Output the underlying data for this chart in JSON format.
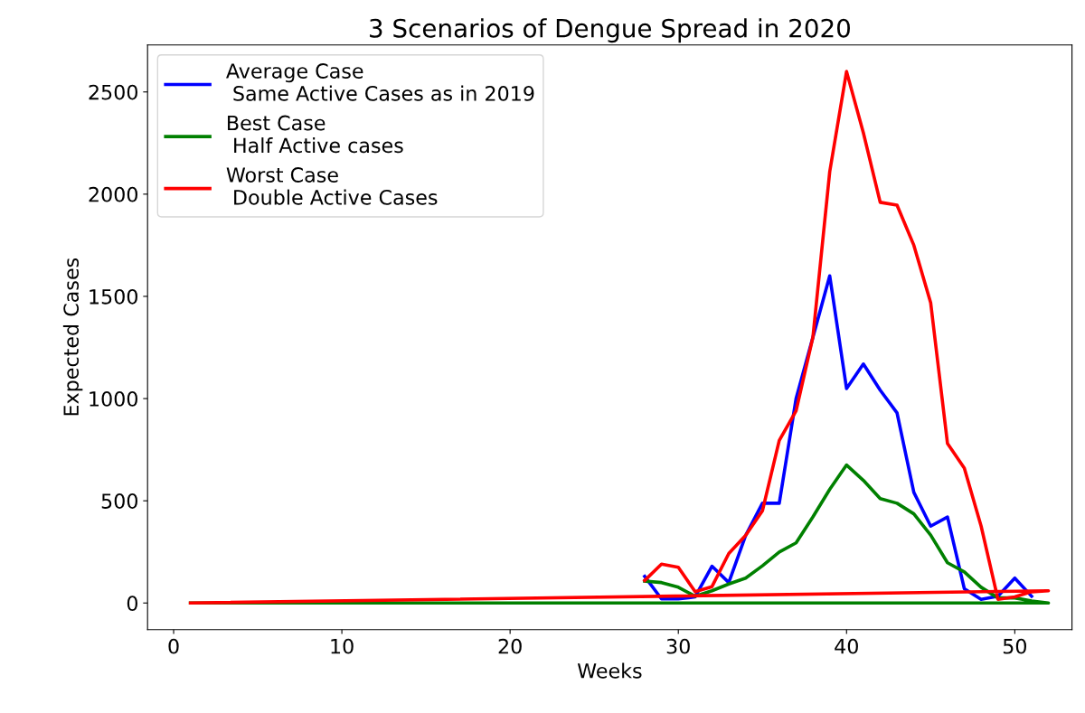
{
  "chart_data": {
    "type": "line",
    "title": "3 Scenarios of Dengue Spread in 2020",
    "xlabel": "Weeks",
    "ylabel": "Expected Cases",
    "xlim": [
      -1.55,
      53.4
    ],
    "xticks": [
      0,
      10,
      20,
      30,
      40,
      50
    ],
    "ylim": [
      -130,
      2730
    ],
    "yticks": [
      0,
      500,
      1000,
      1500,
      2000,
      2500
    ],
    "grid": false,
    "legend": "top left",
    "marker": "none",
    "line_style": "solid",
    "series": [
      {
        "name": "Average Case\n Same Active Cases as in 2019",
        "color": "#0000ff",
        "x": [
          28,
          29,
          30,
          31,
          32,
          33,
          34,
          35,
          36,
          37,
          38,
          39,
          40,
          41,
          42,
          43,
          44,
          45,
          46,
          47,
          48,
          49,
          50,
          51
        ],
        "values": [
          130,
          20,
          20,
          30,
          180,
          100,
          330,
          488,
          488,
          1000,
          1300,
          1600,
          1049,
          1169,
          1041,
          930,
          541,
          376,
          421,
          70,
          18,
          33,
          122,
          33
        ]
      },
      {
        "name": "Best Case\n Half Active cases",
        "color": "#008000",
        "x": [
          28,
          29,
          30,
          31,
          32,
          33,
          34,
          35,
          36,
          37,
          38,
          39,
          40,
          41,
          42,
          43,
          44,
          45,
          46,
          47,
          48,
          49,
          50,
          51,
          52,
          1
        ],
        "values": [
          107,
          100,
          77,
          33,
          60,
          93,
          122,
          182,
          249,
          294,
          421,
          556,
          675,
          600,
          511,
          488,
          436,
          332,
          197,
          152,
          77,
          25,
          25,
          10,
          0,
          0
        ]
      },
      {
        "name": "Worst Case\n Double Active Cases",
        "color": "#ff0000",
        "x": [
          28,
          29,
          30,
          31,
          32,
          33,
          34,
          35,
          36,
          37,
          38,
          39,
          40,
          41,
          42,
          43,
          44,
          45,
          46,
          47,
          48,
          49,
          50,
          51,
          52,
          1
        ],
        "values": [
          110,
          190,
          175,
          55,
          80,
          242,
          331,
          451,
          795,
          940,
          1300,
          2110,
          2600,
          2300,
          1960,
          1946,
          1750,
          1469,
          780,
          660,
          376,
          18,
          30,
          55,
          60,
          0
        ]
      }
    ]
  }
}
